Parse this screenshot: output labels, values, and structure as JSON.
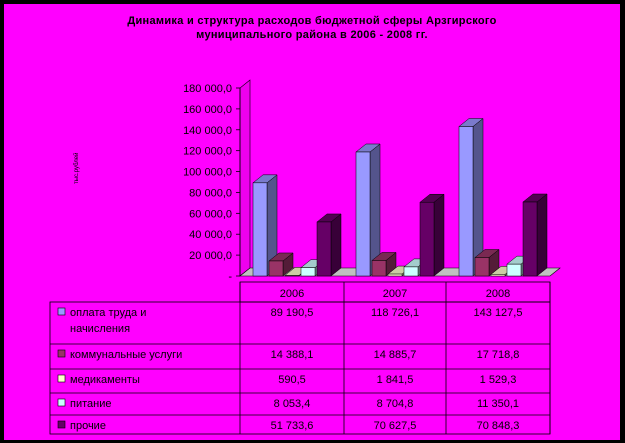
{
  "chart_data": {
    "type": "bar",
    "title": "Динамика и структура расходов бюджетной сферы Арзгирского\nмуниципального района в 2006 - 2008 гг.",
    "ylabel": "тыс.рублей",
    "ylim": [
      0,
      180000
    ],
    "yticks": [
      "-",
      "20 000,0",
      "40 000,0",
      "60 000,0",
      "80 000,0",
      "100 000,0",
      "120 000,0",
      "140 000,0",
      "160 000,0",
      "180 000,0"
    ],
    "categories": [
      "2006",
      "2007",
      "2008"
    ],
    "series": [
      {
        "name": "оплата труда и начисления",
        "values": [
          89190.5,
          118726.1,
          143127.5
        ],
        "display": [
          "89 190,5",
          "118 726,1",
          "143 127,5"
        ],
        "color": "#9999ff"
      },
      {
        "name": "коммунальные услуги",
        "values": [
          14388.1,
          14885.7,
          17718.8
        ],
        "display": [
          "14 388,1",
          "14 885,7",
          "17 718,8"
        ],
        "color": "#993366"
      },
      {
        "name": "медикаменты",
        "values": [
          590.5,
          1841.5,
          1529.3
        ],
        "display": [
          "590,5",
          "1 841,5",
          "1 529,3"
        ],
        "color": "#ffffcc"
      },
      {
        "name": "питание",
        "values": [
          8053.4,
          8704.8,
          11350.1
        ],
        "display": [
          "8 053,4",
          "8 704,8",
          "11 350,1"
        ],
        "color": "#ccffff"
      },
      {
        "name": "прочие",
        "values": [
          51733.6,
          70627.5,
          70848.3
        ],
        "display": [
          "51 733,6",
          "70 627,5",
          "70 848,3"
        ],
        "color": "#660066"
      }
    ],
    "legend": "table-bottom",
    "grid": false
  }
}
